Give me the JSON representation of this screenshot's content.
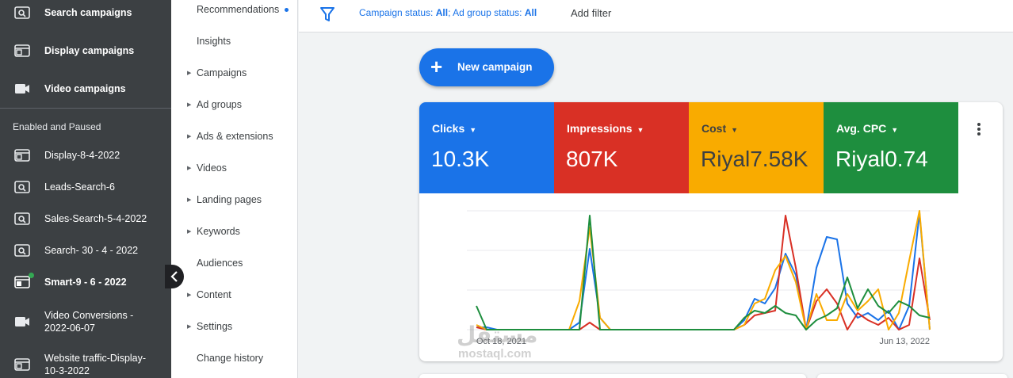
{
  "sidebar": {
    "top_items": [
      {
        "label": "Search campaigns",
        "icon": "search-campaign-icon"
      },
      {
        "label": "Display campaigns",
        "icon": "display-campaign-icon"
      },
      {
        "label": "Video campaigns",
        "icon": "video-campaign-icon"
      }
    ],
    "section_label": "Enabled and Paused",
    "campaigns": [
      {
        "label": "Display-8-4-2022",
        "icon": "display-campaign-icon",
        "bold": false
      },
      {
        "label": "Leads-Search-6",
        "icon": "search-campaign-icon",
        "bold": false
      },
      {
        "label": "Sales-Search-5-4-2022",
        "icon": "search-campaign-icon",
        "bold": false
      },
      {
        "label": "Search- 30 - 4 - 2022",
        "icon": "search-campaign-icon",
        "bold": false
      },
      {
        "label": "Smart-9 - 6 - 2022",
        "icon": "smart-campaign-icon",
        "bold": true
      },
      {
        "label": "Video Conversions -\n2022-06-07",
        "icon": "video-campaign-icon",
        "bold": false
      },
      {
        "label": "Website traffic-Display-\n10-3-2022",
        "icon": "display-campaign-icon",
        "bold": false
      }
    ]
  },
  "pagenav": {
    "items": [
      {
        "label": "Recommendations",
        "expandable": false
      },
      {
        "label": "Insights",
        "expandable": false
      },
      {
        "label": "Campaigns",
        "expandable": true
      },
      {
        "label": "Ad groups",
        "expandable": true
      },
      {
        "label": "Ads & extensions",
        "expandable": true
      },
      {
        "label": "Videos",
        "expandable": true
      },
      {
        "label": "Landing pages",
        "expandable": true
      },
      {
        "label": "Keywords",
        "expandable": true
      },
      {
        "label": "Audiences",
        "expandable": false
      },
      {
        "label": "Content",
        "expandable": true
      },
      {
        "label": "Settings",
        "expandable": true
      },
      {
        "label": "Change history",
        "expandable": false
      }
    ]
  },
  "filterbar": {
    "campaign_status_label": "Campaign status: ",
    "campaign_status_value": "All",
    "separator": "; ",
    "adgroup_status_label": "Ad group status: ",
    "adgroup_status_value": "All",
    "add_filter": "Add filter"
  },
  "new_campaign_label": "New campaign",
  "metrics": [
    {
      "name": "Clicks",
      "value": "10.3K",
      "color": "#1a73e8"
    },
    {
      "name": "Impressions",
      "value": "807K",
      "color": "#d93025"
    },
    {
      "name": "Cost",
      "value": "Riyal7.58K",
      "color": "#f9ab00"
    },
    {
      "name": "Avg. CPC",
      "value": "Riyal0.74",
      "color": "#1e8e3e"
    }
  ],
  "watermark": {
    "arabic": "مستقل",
    "latin": "mostaql.com"
  },
  "chart_data": {
    "type": "line",
    "x_start_label": "Oct 18, 2021",
    "x_end_label": "Jun 13, 2022",
    "ylim": [
      0,
      100
    ],
    "grid": true,
    "series": [
      {
        "name": "Clicks",
        "color": "#1a73e8",
        "values": [
          2,
          2,
          0,
          0,
          0,
          0,
          0,
          0,
          0,
          0,
          6,
          68,
          10,
          0,
          0,
          0,
          0,
          0,
          0,
          0,
          0,
          0,
          0,
          0,
          0,
          0,
          8,
          26,
          22,
          35,
          64,
          46,
          0,
          52,
          78,
          76,
          22,
          10,
          14,
          8,
          16,
          0,
          20,
          98,
          0
        ]
      },
      {
        "name": "Impressions",
        "color": "#d93025",
        "values": [
          2,
          0,
          0,
          0,
          0,
          0,
          0,
          0,
          0,
          0,
          0,
          6,
          0,
          0,
          0,
          0,
          0,
          0,
          0,
          0,
          0,
          0,
          0,
          0,
          0,
          0,
          4,
          12,
          14,
          16,
          96,
          52,
          0,
          24,
          34,
          22,
          0,
          14,
          8,
          4,
          10,
          0,
          4,
          60,
          8
        ]
      },
      {
        "name": "Cost",
        "color": "#f9ab00",
        "values": [
          4,
          0,
          0,
          0,
          0,
          0,
          0,
          0,
          0,
          0,
          24,
          86,
          10,
          0,
          0,
          0,
          0,
          0,
          0,
          0,
          0,
          0,
          0,
          0,
          0,
          0,
          4,
          22,
          26,
          50,
          62,
          40,
          0,
          30,
          8,
          8,
          30,
          16,
          24,
          34,
          0,
          14,
          58,
          100,
          0
        ]
      },
      {
        "name": "Avg. CPC",
        "color": "#1e8e3e",
        "values": [
          20,
          0,
          0,
          0,
          0,
          0,
          0,
          0,
          0,
          0,
          0,
          96,
          0,
          0,
          0,
          0,
          0,
          0,
          0,
          0,
          0,
          0,
          0,
          0,
          0,
          0,
          10,
          16,
          14,
          20,
          14,
          12,
          0,
          8,
          12,
          18,
          44,
          18,
          34,
          20,
          14,
          24,
          20,
          12,
          10
        ]
      }
    ]
  }
}
